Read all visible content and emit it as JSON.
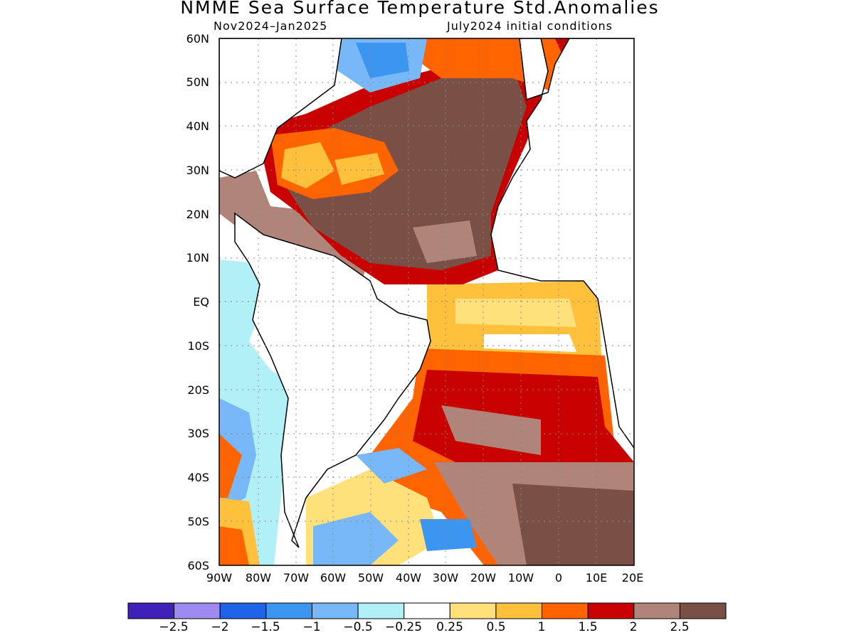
{
  "title": "NMME Sea Surface Temperature Std.Anomalies",
  "subtitle_left": "Nov2024–Jan2025",
  "subtitle_right": "July2024 initial conditions",
  "lat_labels": [
    "60N",
    "50N",
    "40N",
    "30N",
    "20N",
    "10N",
    "EQ",
    "10S",
    "20S",
    "30S",
    "40S",
    "50S",
    "60S"
  ],
  "lon_labels": [
    "90W",
    "80W",
    "70W",
    "60W",
    "50W",
    "40W",
    "30W",
    "20W",
    "10W",
    "0",
    "10E",
    "20E"
  ],
  "colorbar": {
    "colors": [
      "#3f20b8",
      "#9e8af0",
      "#1f64e6",
      "#3c96f0",
      "#78b8f8",
      "#b2f0f8",
      "#ffffff",
      "#ffe07a",
      "#ffc03c",
      "#ff6400",
      "#c80000",
      "#b08478",
      "#7a5046"
    ],
    "labels": [
      "−2.5",
      "−2",
      "−1.5",
      "−1",
      "−0.5",
      "−0.25",
      "0.25",
      "0.5",
      "1",
      "1.5",
      "2",
      "2.5"
    ]
  },
  "map": {
    "lat_range": [
      "60S",
      "60N"
    ],
    "lon_range": [
      "90W",
      "20E"
    ],
    "grid": "dotted"
  }
}
